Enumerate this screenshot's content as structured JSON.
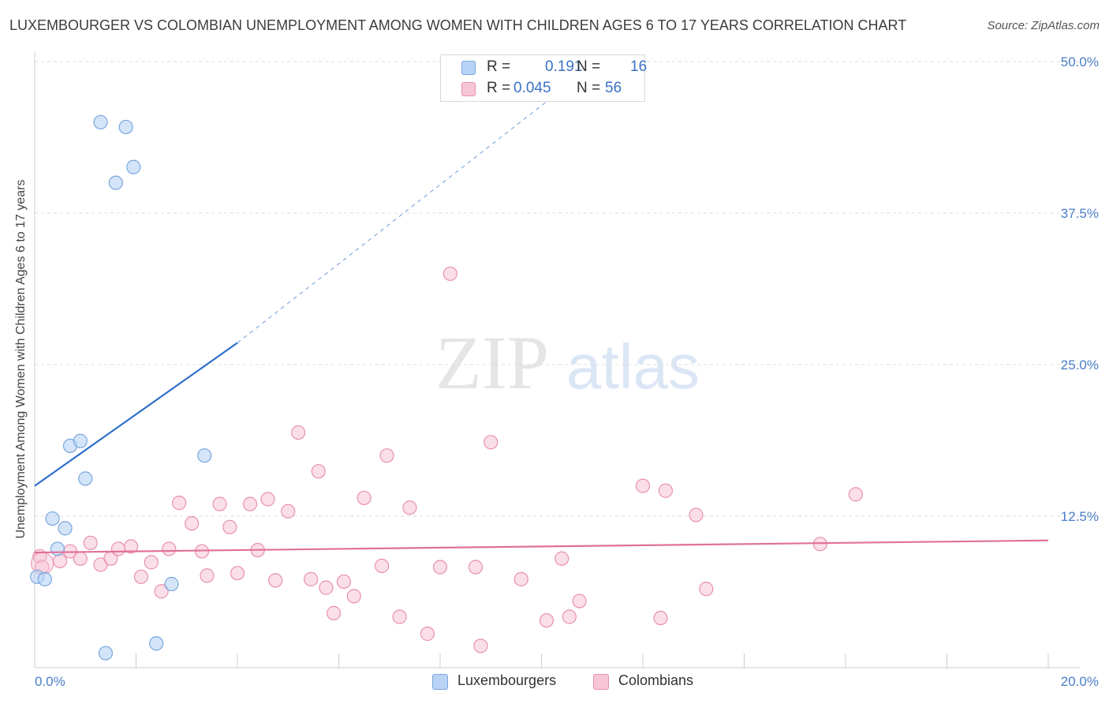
{
  "header": {
    "title": "LUXEMBOURGER VS COLOMBIAN UNEMPLOYMENT AMONG WOMEN WITH CHILDREN AGES 6 TO 17 YEARS CORRELATION CHART",
    "source": "Source: ZipAtlas.com"
  },
  "watermark": {
    "zip": "ZIP",
    "atlas": "atlas"
  },
  "legend_top": {
    "rows": [
      {
        "r_label": "R =",
        "r_value": "0.191",
        "n_label": "N =",
        "n_value": "16"
      },
      {
        "r_label": "R =",
        "r_value": "0.045",
        "n_label": "N =",
        "n_value": "56"
      }
    ]
  },
  "legend_bottom": {
    "items": [
      "Luxembourgers",
      "Colombians"
    ]
  },
  "colors": {
    "lux_fill": "#b8d3f5",
    "lux_stroke": "#7aa6dd",
    "lux_line": "#2f6fcb",
    "col_fill": "#f7c5d6",
    "col_stroke": "#e890af",
    "col_line": "#e0709a",
    "tick_label": "#4a7dc6",
    "grid": "#dddddd"
  },
  "chart_data": {
    "type": "scatter",
    "title": "LUXEMBOURGER VS COLOMBIAN UNEMPLOYMENT AMONG WOMEN WITH CHILDREN AGES 6 TO 17 YEARS CORRELATION CHART",
    "xlabel": "",
    "ylabel": "Unemployment Among Women with Children Ages 6 to 17 years",
    "xlim": [
      0,
      20
    ],
    "ylim": [
      0,
      50
    ],
    "x_tick_labels": [
      "0.0%",
      "20.0%"
    ],
    "y_ticks": [
      12.5,
      25.0,
      37.5,
      50.0
    ],
    "y_tick_labels": [
      "12.5%",
      "25.0%",
      "37.5%",
      "50.0%"
    ],
    "grid": "horizontal dashed",
    "legend_position": "top-center",
    "series": [
      {
        "name": "Luxembourgers",
        "r": 0.191,
        "n": 16,
        "trend": {
          "x0": 0.0,
          "y0": 15.0,
          "x1": 4.0,
          "y1": 26.8,
          "dashed_to_x": 10.5,
          "dashed_to_y": 48.0
        },
        "points": [
          [
            0.05,
            7.5
          ],
          [
            0.2,
            7.3
          ],
          [
            0.35,
            12.3
          ],
          [
            0.45,
            9.8
          ],
          [
            0.6,
            11.5
          ],
          [
            0.7,
            18.3
          ],
          [
            0.9,
            18.7
          ],
          [
            1.0,
            15.6
          ],
          [
            1.3,
            45.0
          ],
          [
            1.4,
            1.2
          ],
          [
            1.6,
            40.0
          ],
          [
            1.8,
            44.6
          ],
          [
            1.95,
            41.3
          ],
          [
            2.4,
            2.0
          ],
          [
            2.7,
            6.9
          ],
          [
            3.35,
            17.5
          ]
        ]
      },
      {
        "name": "Colombians",
        "r": 0.045,
        "n": 56,
        "trend": {
          "x0": 0.0,
          "y0": 9.5,
          "x1": 20.0,
          "y1": 10.5
        },
        "points": [
          [
            0.1,
            9.2
          ],
          [
            0.15,
            8.3
          ],
          [
            0.5,
            8.8
          ],
          [
            0.7,
            9.6
          ],
          [
            0.9,
            9.0
          ],
          [
            1.1,
            10.3
          ],
          [
            1.3,
            8.5
          ],
          [
            1.5,
            9.0
          ],
          [
            1.65,
            9.8
          ],
          [
            1.9,
            10.0
          ],
          [
            2.1,
            7.5
          ],
          [
            2.3,
            8.7
          ],
          [
            2.5,
            6.3
          ],
          [
            2.65,
            9.8
          ],
          [
            2.85,
            13.6
          ],
          [
            3.1,
            11.9
          ],
          [
            3.3,
            9.6
          ],
          [
            3.4,
            7.6
          ],
          [
            3.65,
            13.5
          ],
          [
            3.85,
            11.6
          ],
          [
            4.0,
            7.8
          ],
          [
            4.25,
            13.5
          ],
          [
            4.4,
            9.7
          ],
          [
            4.6,
            13.9
          ],
          [
            4.75,
            7.2
          ],
          [
            5.0,
            12.9
          ],
          [
            5.2,
            19.4
          ],
          [
            5.45,
            7.3
          ],
          [
            5.6,
            16.2
          ],
          [
            5.75,
            6.6
          ],
          [
            5.9,
            4.5
          ],
          [
            6.1,
            7.1
          ],
          [
            6.3,
            5.9
          ],
          [
            6.5,
            14.0
          ],
          [
            6.85,
            8.4
          ],
          [
            6.95,
            17.5
          ],
          [
            7.2,
            4.2
          ],
          [
            7.4,
            13.2
          ],
          [
            7.75,
            2.8
          ],
          [
            8.0,
            8.3
          ],
          [
            8.2,
            32.5
          ],
          [
            8.7,
            8.3
          ],
          [
            8.8,
            1.8
          ],
          [
            9.0,
            18.6
          ],
          [
            9.6,
            7.3
          ],
          [
            10.1,
            3.9
          ],
          [
            10.4,
            9.0
          ],
          [
            10.55,
            4.2
          ],
          [
            10.75,
            5.5
          ],
          [
            12.0,
            15.0
          ],
          [
            12.35,
            4.1
          ],
          [
            12.45,
            14.6
          ],
          [
            13.05,
            12.6
          ],
          [
            13.25,
            6.5
          ],
          [
            15.5,
            10.2
          ],
          [
            16.2,
            14.3
          ]
        ]
      }
    ]
  }
}
